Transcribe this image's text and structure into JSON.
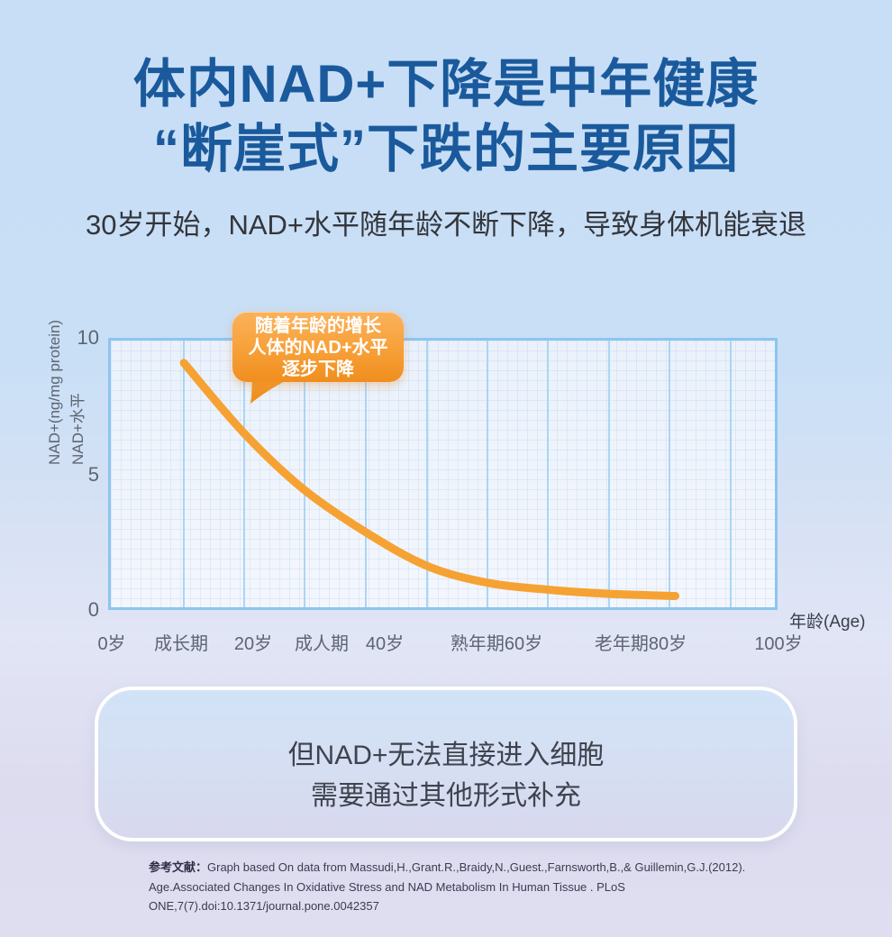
{
  "header": {
    "title_line1": "体内NAD+下降是中年健康",
    "title_line2": "“断崖式”下跌的主要原因",
    "subtitle": "30岁开始，NAD+水平随年龄不断下降，导致身体机能衰退"
  },
  "chart_data": {
    "type": "line",
    "title": "",
    "x_ages": [
      11,
      20,
      29,
      39,
      48,
      57,
      66,
      75,
      85
    ],
    "series": [
      {
        "name": "NAD+水平",
        "values": [
          9.1,
          6.5,
          4.4,
          2.7,
          1.5,
          0.9,
          0.65,
          0.5,
          0.42
        ]
      }
    ],
    "xlabel": "年龄(Age)",
    "ylabel_line1": "NAD+(ng/mg protein)",
    "ylabel_line2": "NAD+水平",
    "xticks": [
      "0岁",
      "成长期",
      "20岁",
      "成人期",
      "40岁",
      "熟年期60岁",
      "老年期80岁",
      "100岁"
    ],
    "yticks": [
      "0",
      "5",
      "10"
    ],
    "xlim": [
      0,
      100
    ],
    "ylim": [
      0,
      10
    ],
    "grid": "vertical major gridlines with fine graph-paper minor grid",
    "legend": "none",
    "annotation": {
      "line1": "随着年龄的增长",
      "line2": "人体的NAD+水平",
      "line3": "逐步下降"
    }
  },
  "info_box": {
    "line1": "但NAD+无法直接进入细胞",
    "line2": "需要通过其他形式补充"
  },
  "reference": {
    "label": "参考文献：",
    "text": "Graph based On data from Massudi,H.,Grant.R.,Braidy,N.,Guest.,Farnsworth,B.,& Guillemin,G.J.(2012). Age.Associated Changes In Oxidative Stress and NAD Metabolism In Human Tissue . PLoS ONE,7(7).doi:10.1371/journal.pone.0042357"
  },
  "colors": {
    "title_blue": "#1A5A9C",
    "curve_orange": "#F6A233",
    "bubble_top": "#FBB25B",
    "bubble_bottom": "#F08E1E",
    "plot_border": "#8CC5F0",
    "gridline": "#ABD5F4",
    "axis_text": "#5D6571"
  }
}
